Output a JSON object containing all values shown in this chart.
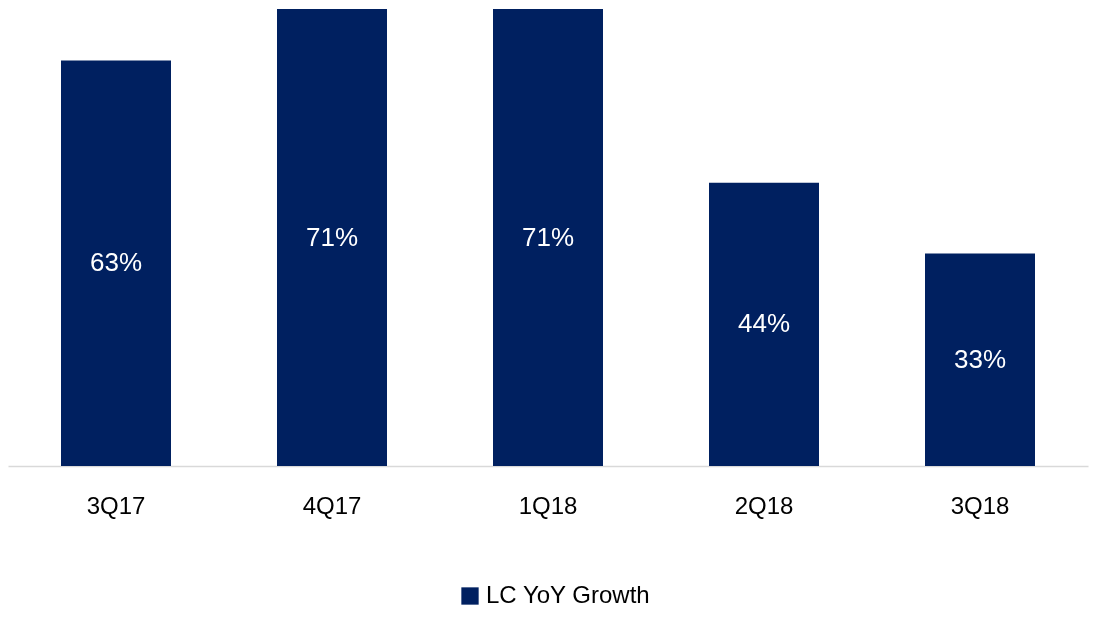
{
  "chart_data": {
    "type": "bar",
    "categories": [
      "3Q17",
      "4Q17",
      "1Q18",
      "2Q18",
      "3Q18"
    ],
    "series": [
      {
        "name": "LC YoY Growth",
        "color": "#002060",
        "values": [
          63,
          71,
          71,
          44,
          33
        ],
        "value_labels": [
          "63%",
          "71%",
          "71%",
          "44%",
          "33%"
        ]
      }
    ],
    "legend": "bottom",
    "grid": false
  }
}
